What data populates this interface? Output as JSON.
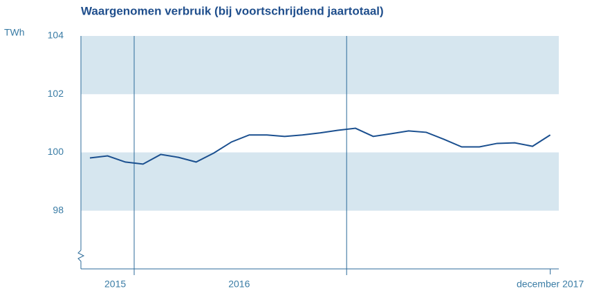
{
  "chart_data": {
    "type": "line",
    "title": "Waargenomen verbruik (bij voortschrijdend jaartotaal)",
    "y_unit": "TWh",
    "categories": [
      null,
      "2015",
      null,
      null,
      null,
      null,
      null,
      null,
      "2016",
      null,
      null,
      null,
      null,
      null,
      null,
      null,
      null,
      null,
      null,
      null,
      null,
      null,
      null,
      null,
      null,
      null,
      "december 2017"
    ],
    "series": [
      {
        "color": "#1a4f8f",
        "values": [
          99.81,
          99.88,
          99.67,
          99.6,
          99.93,
          99.83,
          99.67,
          99.98,
          100.36,
          100.6,
          100.6,
          100.55,
          100.6,
          100.67,
          100.76,
          100.83,
          100.55,
          100.64,
          100.74,
          100.69,
          100.45,
          100.19,
          100.19,
          100.31,
          100.33,
          100.21,
          100.6
        ]
      }
    ],
    "ylim": [
      96,
      104
    ],
    "yticks": [
      98,
      100,
      102,
      104
    ],
    "bands": true
  }
}
